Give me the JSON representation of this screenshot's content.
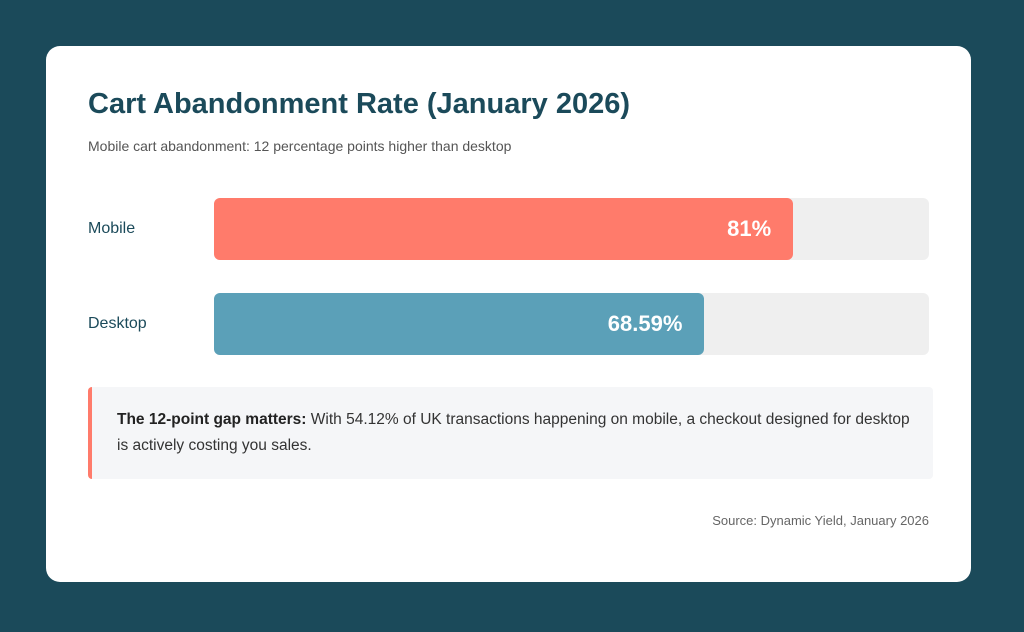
{
  "chart_data": {
    "type": "bar",
    "orientation": "horizontal",
    "title": "Cart Abandonment Rate (January 2026)",
    "subtitle": "Mobile cart abandonment: 12 percentage points higher than desktop",
    "categories": [
      "Mobile",
      "Desktop"
    ],
    "values": [
      81,
      68.59
    ],
    "value_labels": [
      "81%",
      "68.59%"
    ],
    "colors": [
      "#ff7b6b",
      "#5ba0b8"
    ],
    "xlim": [
      0,
      100
    ],
    "annotation": {
      "lead": "The 12-point gap matters:",
      "text": "With 54.12% of UK transactions happening on mobile, a checkout designed for desktop is actively costing you sales."
    },
    "source": "Source: Dynamic Yield, January 2026"
  }
}
